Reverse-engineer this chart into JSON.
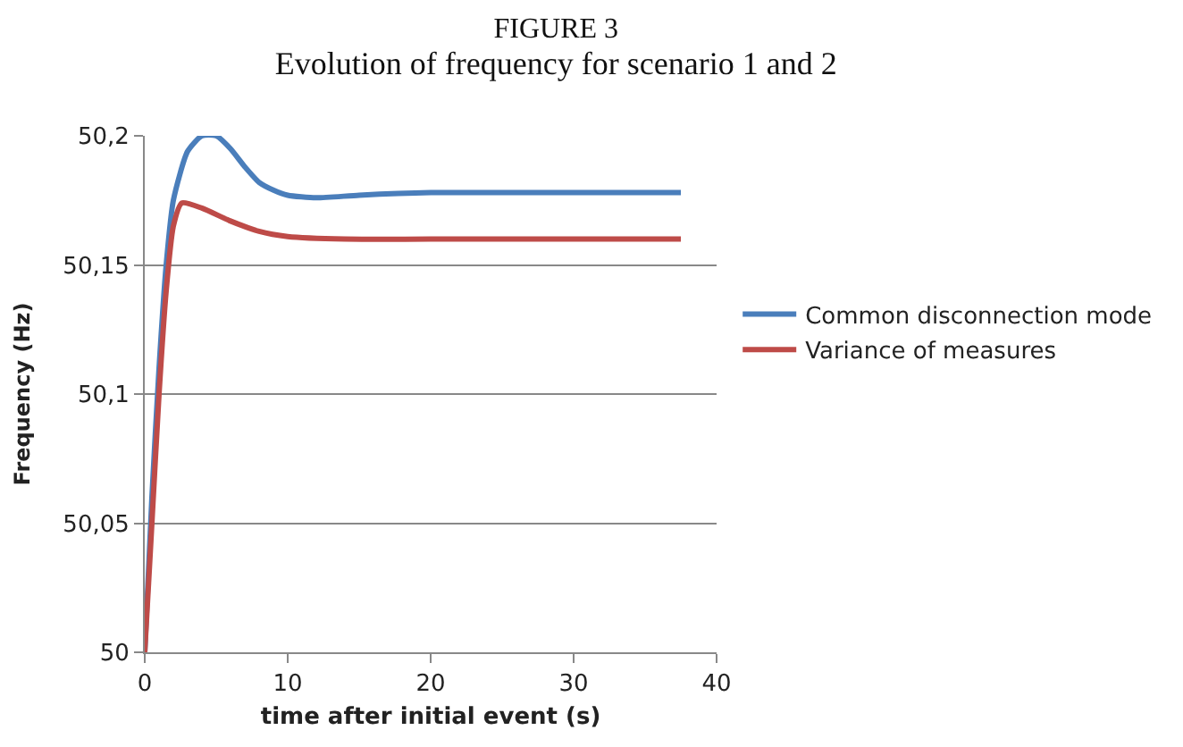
{
  "chart_data": {
    "type": "line",
    "title": "FIGURE 3",
    "subtitle": "Evolution of frequency for scenario 1 and 2",
    "xlabel": "time after initial event (s)",
    "ylabel": "Frequency (Hz)",
    "xlim": [
      0,
      40
    ],
    "xticks": [
      0,
      10,
      20,
      30,
      40
    ],
    "ylim": [
      50,
      50.2
    ],
    "yticks": [
      {
        "value": 50,
        "label": "50"
      },
      {
        "value": 50.05,
        "label": "50,05"
      },
      {
        "value": 50.1,
        "label": "50,1"
      },
      {
        "value": 50.15,
        "label": "50,15"
      },
      {
        "value": 50.2,
        "label": "50,2"
      }
    ],
    "grid": "y",
    "legend": "right",
    "marker": "none",
    "line_style": "solid",
    "series": [
      {
        "name": "Common disconnection mode",
        "color": "#4a7ebb",
        "x": [
          0,
          0.5,
          1,
          1.5,
          2,
          3,
          4,
          5,
          6,
          7,
          8,
          9,
          10,
          12,
          15,
          20,
          30,
          37.5
        ],
        "values": [
          50,
          50.06,
          50.11,
          50.15,
          50.175,
          50.194,
          50.2,
          50.2,
          50.195,
          50.188,
          50.182,
          50.179,
          50.177,
          50.176,
          50.177,
          50.178,
          50.178,
          50.178
        ]
      },
      {
        "name": "Variance of measures",
        "color": "#be4b48",
        "x": [
          0,
          0.5,
          1,
          1.5,
          2,
          2.6,
          4,
          6,
          8,
          10,
          14,
          20,
          37.5
        ],
        "values": [
          50,
          50.05,
          50.1,
          50.14,
          50.165,
          50.174,
          50.172,
          50.167,
          50.163,
          50.161,
          50.16,
          50.16,
          50.16
        ]
      }
    ]
  }
}
